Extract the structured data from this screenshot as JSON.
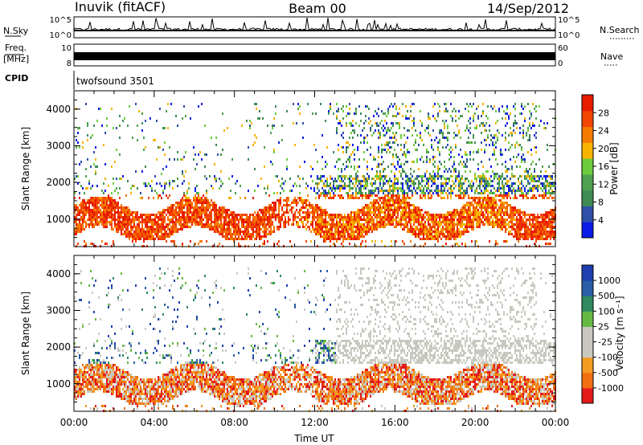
{
  "header": {
    "title_left": "Inuvik (fitACF)",
    "title_center": "Beam 00",
    "title_right": "14/Sep/2012"
  },
  "top_panels": {
    "nsky_label": "N.Sky",
    "nsky_ticks": [
      "10^5",
      "10^0"
    ],
    "nsearch_label": "N.Search",
    "nsearch_ticks": [
      "10^5",
      "10^0"
    ],
    "freq_label_1": "Freq.",
    "freq_label_2": "[MHz]",
    "freq_ticks": [
      "10",
      "8"
    ],
    "nave_label": "Nave",
    "nave_ticks": [
      "60",
      "0"
    ],
    "cpid_label": "CPID",
    "cpid_value": "twofsound 3501"
  },
  "colors": {
    "power": [
      "#0b1ce6",
      "#2f4fa8",
      "#3f8a55",
      "#4fa04f",
      "#6dcc3c",
      "#f7b400",
      "#f57a00",
      "#f24500",
      "#e81a00"
    ],
    "velocity": [
      "#e31a1c",
      "#f07010",
      "#f59a20",
      "#c8c8c0",
      "#c8c8c0",
      "#66b944",
      "#2f8a5f",
      "#2a5ea8",
      "#1e3fb0"
    ]
  },
  "chart_data": [
    {
      "type": "heatmap",
      "name": "power",
      "ylabel": "Slant Range [km]",
      "y_ticks": [
        1000,
        2000,
        3000,
        4000
      ],
      "ylim": [
        250,
        4500
      ],
      "x_ticks": [
        "00:00",
        "04:00",
        "08:00",
        "12:00",
        "16:00",
        "20:00",
        "00:00"
      ],
      "x_hours": [
        0,
        4,
        8,
        12,
        16,
        20,
        24
      ],
      "colorbar_label": "Power [dB]",
      "colorbar_ticks": [
        "28",
        "24",
        "20",
        "16",
        "12",
        "8",
        "4"
      ],
      "colorbar_range": [
        0,
        32
      ]
    },
    {
      "type": "heatmap",
      "name": "velocity",
      "ylabel": "Slant Range [km]",
      "y_ticks": [
        1000,
        2000,
        3000,
        4000
      ],
      "ylim": [
        250,
        4500
      ],
      "x_ticks": [
        "00:00",
        "04:00",
        "08:00",
        "12:00",
        "16:00",
        "20:00",
        "00:00"
      ],
      "x_hours": [
        0,
        4,
        8,
        12,
        16,
        20,
        24
      ],
      "xlabel": "Time UT",
      "colorbar_label": "Velocity [m s⁻¹]",
      "colorbar_ticks": [
        "1000",
        "500",
        "100",
        "25",
        "-25",
        "-100",
        "-500",
        "-1000"
      ]
    }
  ]
}
